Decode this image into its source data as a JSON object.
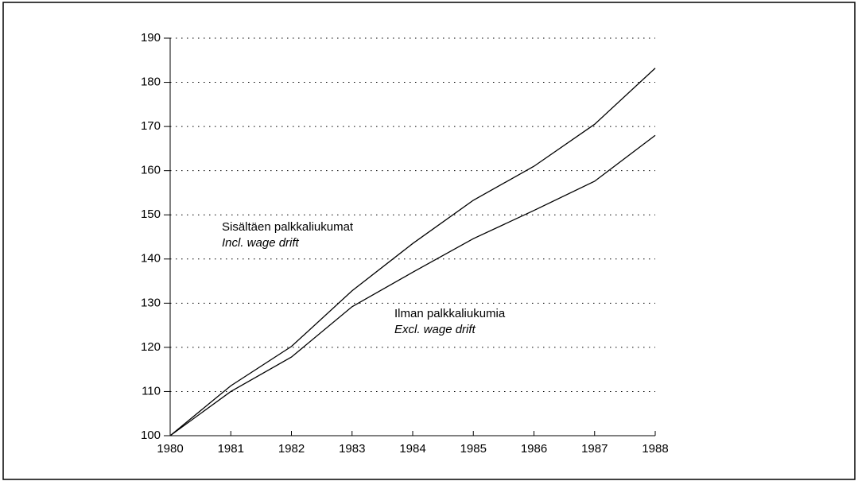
{
  "chart_data": {
    "type": "line",
    "x": [
      1980,
      1981,
      1982,
      1983,
      1984,
      1985,
      1986,
      1987,
      1988
    ],
    "series": [
      {
        "name": "Sisältäen palkkaliukumat",
        "name_en": "Incl. wage drift",
        "color": "#000000",
        "values": [
          100,
          111.3,
          120.2,
          132.8,
          143.5,
          153.3,
          161,
          170.5,
          183.2
        ]
      },
      {
        "name": "Ilman palkkaliukumia",
        "name_en": "Excl. wage drift",
        "color": "#000000",
        "values": [
          100,
          110,
          117.8,
          129.2,
          137,
          144.6,
          151,
          157.6,
          168
        ]
      }
    ],
    "xlim": [
      1980,
      1988
    ],
    "xticks": [
      1980,
      1981,
      1982,
      1983,
      1984,
      1985,
      1986,
      1987,
      1988
    ],
    "ylim": [
      100,
      190
    ],
    "yticks": [
      100,
      110,
      120,
      130,
      140,
      150,
      160,
      170,
      180,
      190
    ],
    "grid": true
  }
}
